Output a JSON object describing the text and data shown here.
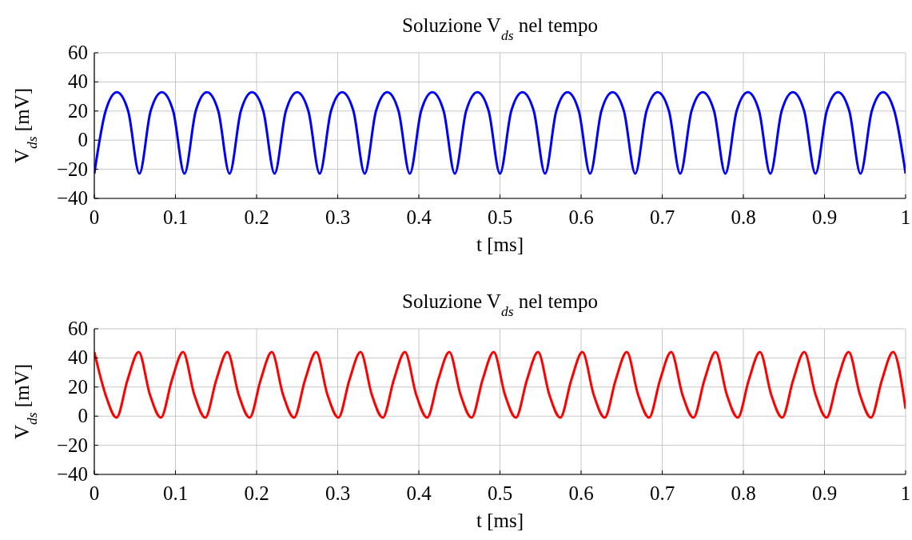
{
  "chart_data": [
    {
      "type": "line",
      "title": "Soluzione V$_{ds}$ nel tempo",
      "xlabel": "t [ms]",
      "ylabel": "V$_{ds}$ [mV]",
      "xlim": [
        0,
        1
      ],
      "xticks": [
        0,
        0.1,
        0.2,
        0.3,
        0.4,
        0.5,
        0.6,
        0.7,
        0.8,
        0.9,
        1
      ],
      "ylim": [
        -40,
        60
      ],
      "yticks": [
        -40,
        -20,
        0,
        20,
        40,
        60
      ],
      "grid": true,
      "marker": "none",
      "line_style": "solid",
      "series": [
        {
          "color": "#0000ff",
          "x": [
            0,
            0.0139,
            0.0278,
            0.0417,
            0.0556,
            0.0694,
            0.0833,
            0.0972,
            0.1111,
            0.125,
            0.1389,
            0.1528,
            0.1667,
            0.1806,
            0.1944,
            0.2083,
            0.2222,
            0.2361,
            0.25,
            0.2639,
            0.2778,
            0.2917,
            0.3056,
            0.3194,
            0.3333,
            0.3472,
            0.3611,
            0.375,
            0.3889,
            0.4028,
            0.4167,
            0.4306,
            0.4444,
            0.4583,
            0.4722,
            0.4861,
            0.5,
            0.5139,
            0.5278,
            0.5417,
            0.5556,
            0.5694,
            0.5833,
            0.5972,
            0.6111,
            0.625,
            0.6389,
            0.6528,
            0.6667,
            0.6806,
            0.6944,
            0.7083,
            0.7222,
            0.7361,
            0.75,
            0.7639,
            0.7778,
            0.7917,
            0.8056,
            0.8194,
            0.8333,
            0.8472,
            0.8611,
            0.875,
            0.8889,
            0.9028,
            0.9167,
            0.9306,
            0.9444,
            0.9583,
            0.9722,
            0.9861,
            1
          ],
          "values": [
            -23,
            20,
            33,
            20,
            -23,
            20,
            33,
            20,
            -23,
            20,
            33,
            20,
            -23,
            20,
            33,
            20,
            -23,
            20,
            33,
            20,
            -23,
            20,
            33,
            20,
            -23,
            20,
            33,
            20,
            -23,
            20,
            33,
            20,
            -23,
            20,
            33,
            20,
            -23,
            20,
            33,
            20,
            -23,
            20,
            33,
            20,
            -23,
            20,
            33,
            20,
            -23,
            20,
            33,
            20,
            -23,
            20,
            33,
            20,
            -23,
            20,
            33,
            20,
            -23,
            20,
            33,
            20,
            -23,
            20,
            33,
            20,
            -23,
            20,
            33,
            20,
            -23
          ]
        }
      ]
    },
    {
      "type": "line",
      "title": "Soluzione V$_{ds}$ nel tempo",
      "xlabel": "t [ms]",
      "ylabel": "V$_{ds}$ [mV]",
      "xlim": [
        0,
        1
      ],
      "xticks": [
        0,
        0.1,
        0.2,
        0.3,
        0.4,
        0.5,
        0.6,
        0.7,
        0.8,
        0.9,
        1
      ],
      "ylim": [
        -40,
        60
      ],
      "yticks": [
        -40,
        -20,
        0,
        20,
        40,
        60
      ],
      "grid": true,
      "marker": "none",
      "line_style": "solid",
      "series": [
        {
          "color": "#ff0000",
          "x": [
            0,
            0.0137,
            0.0274,
            0.041,
            0.0547,
            0.0684,
            0.0821,
            0.0957,
            0.1094,
            0.1231,
            0.1368,
            0.1504,
            0.1641,
            0.1778,
            0.1915,
            0.2051,
            0.2188,
            0.2325,
            0.2462,
            0.2598,
            0.2735,
            0.2872,
            0.3009,
            0.3145,
            0.3282,
            0.3419,
            0.3556,
            0.3692,
            0.3829,
            0.3966,
            0.4103,
            0.4239,
            0.4376,
            0.4513,
            0.465,
            0.4786,
            0.4923,
            0.506,
            0.5197,
            0.5333,
            0.547,
            0.5607,
            0.5744,
            0.588,
            0.6017,
            0.6154,
            0.6291,
            0.6427,
            0.6564,
            0.6701,
            0.6838,
            0.6974,
            0.7111,
            0.7248,
            0.7385,
            0.7521,
            0.7658,
            0.7795,
            0.7932,
            0.8068,
            0.8205,
            0.8342,
            0.8479,
            0.8615,
            0.8752,
            0.8889,
            0.9026,
            0.9162,
            0.9299,
            0.9436,
            0.9573,
            0.9709,
            0.9846,
            1
          ],
          "values": [
            44,
            15,
            -1,
            25,
            44,
            15,
            -1,
            25,
            44,
            15,
            -1,
            25,
            44,
            15,
            -1,
            25,
            44,
            15,
            -1,
            25,
            44,
            15,
            -1,
            25,
            44,
            15,
            -1,
            25,
            44,
            15,
            -1,
            25,
            44,
            15,
            -1,
            25,
            44,
            15,
            -1,
            25,
            44,
            15,
            -1,
            25,
            44,
            15,
            -1,
            25,
            44,
            15,
            -1,
            25,
            44,
            15,
            -1,
            25,
            44,
            15,
            -1,
            25,
            44,
            15,
            -1,
            25,
            44,
            15,
            -1,
            25,
            44,
            15,
            -1,
            25,
            44,
            5
          ]
        }
      ]
    }
  ]
}
